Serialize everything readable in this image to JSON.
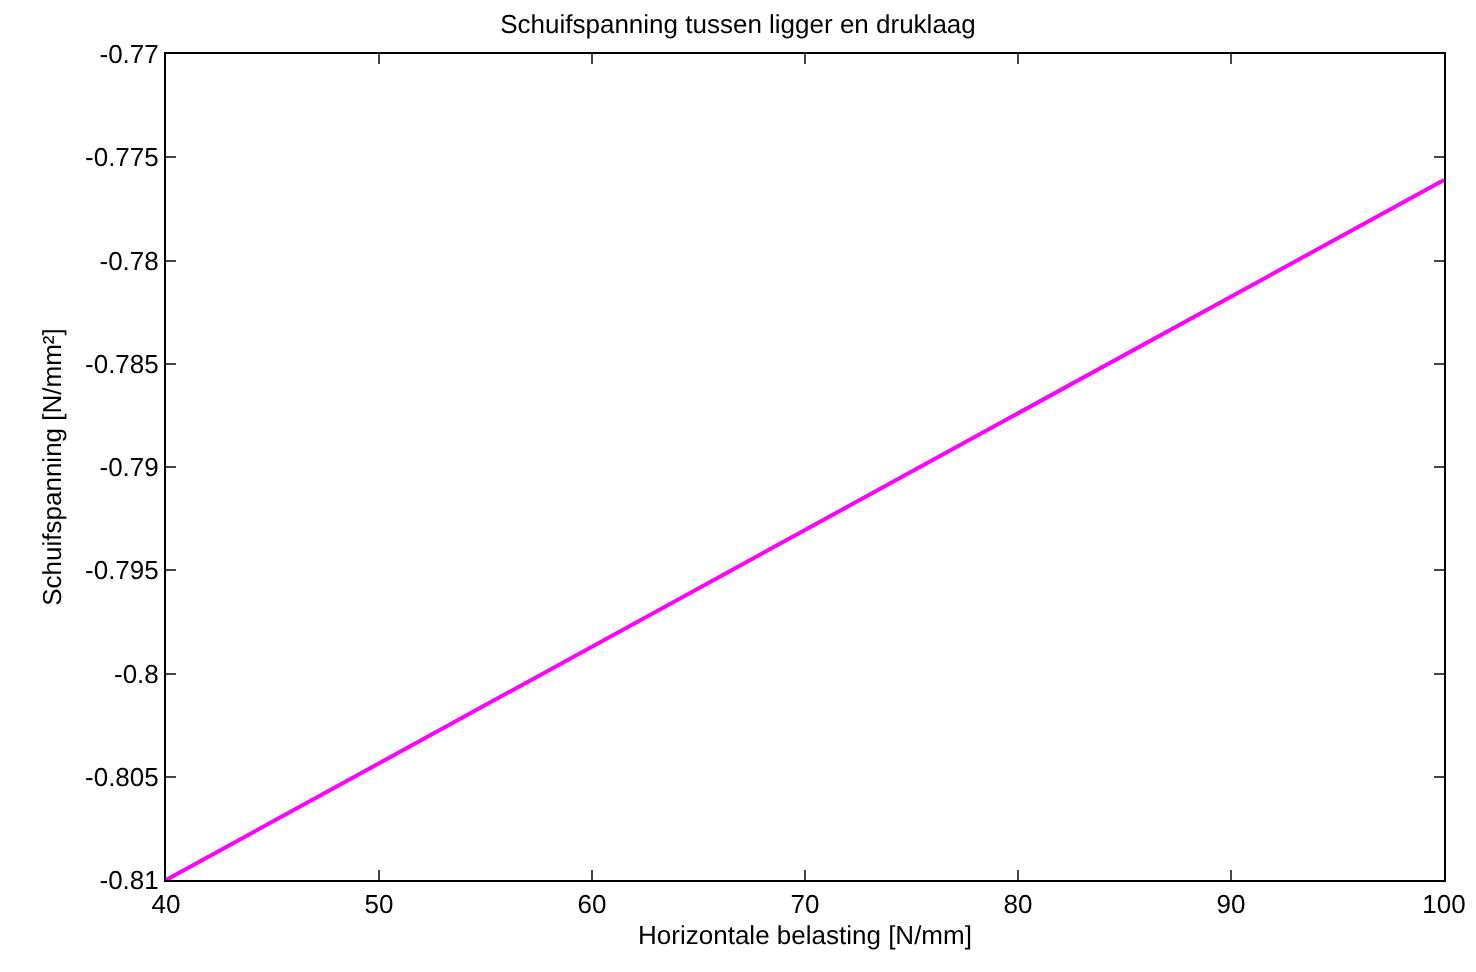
{
  "chart_data": {
    "type": "line",
    "title": "Schuifspanning tussen ligger en druklaag",
    "xlabel": "Horizontale belasting [N/mm]",
    "ylabel": "Schuifspanning [N/mm²]",
    "x": [
      40,
      100
    ],
    "series": [
      {
        "color": "#ff00ff",
        "values": [
          -0.81,
          -0.7761
        ]
      }
    ],
    "xlim": [
      40,
      100
    ],
    "xticks": [
      40,
      50,
      60,
      70,
      80,
      90,
      100
    ],
    "ylim": [
      -0.81,
      -0.77
    ],
    "yticks": [
      -0.81,
      -0.805,
      -0.8,
      -0.795,
      -0.79,
      -0.785,
      -0.78,
      -0.775,
      -0.77
    ],
    "grid": false,
    "marker": "none",
    "line_style": "solid"
  }
}
